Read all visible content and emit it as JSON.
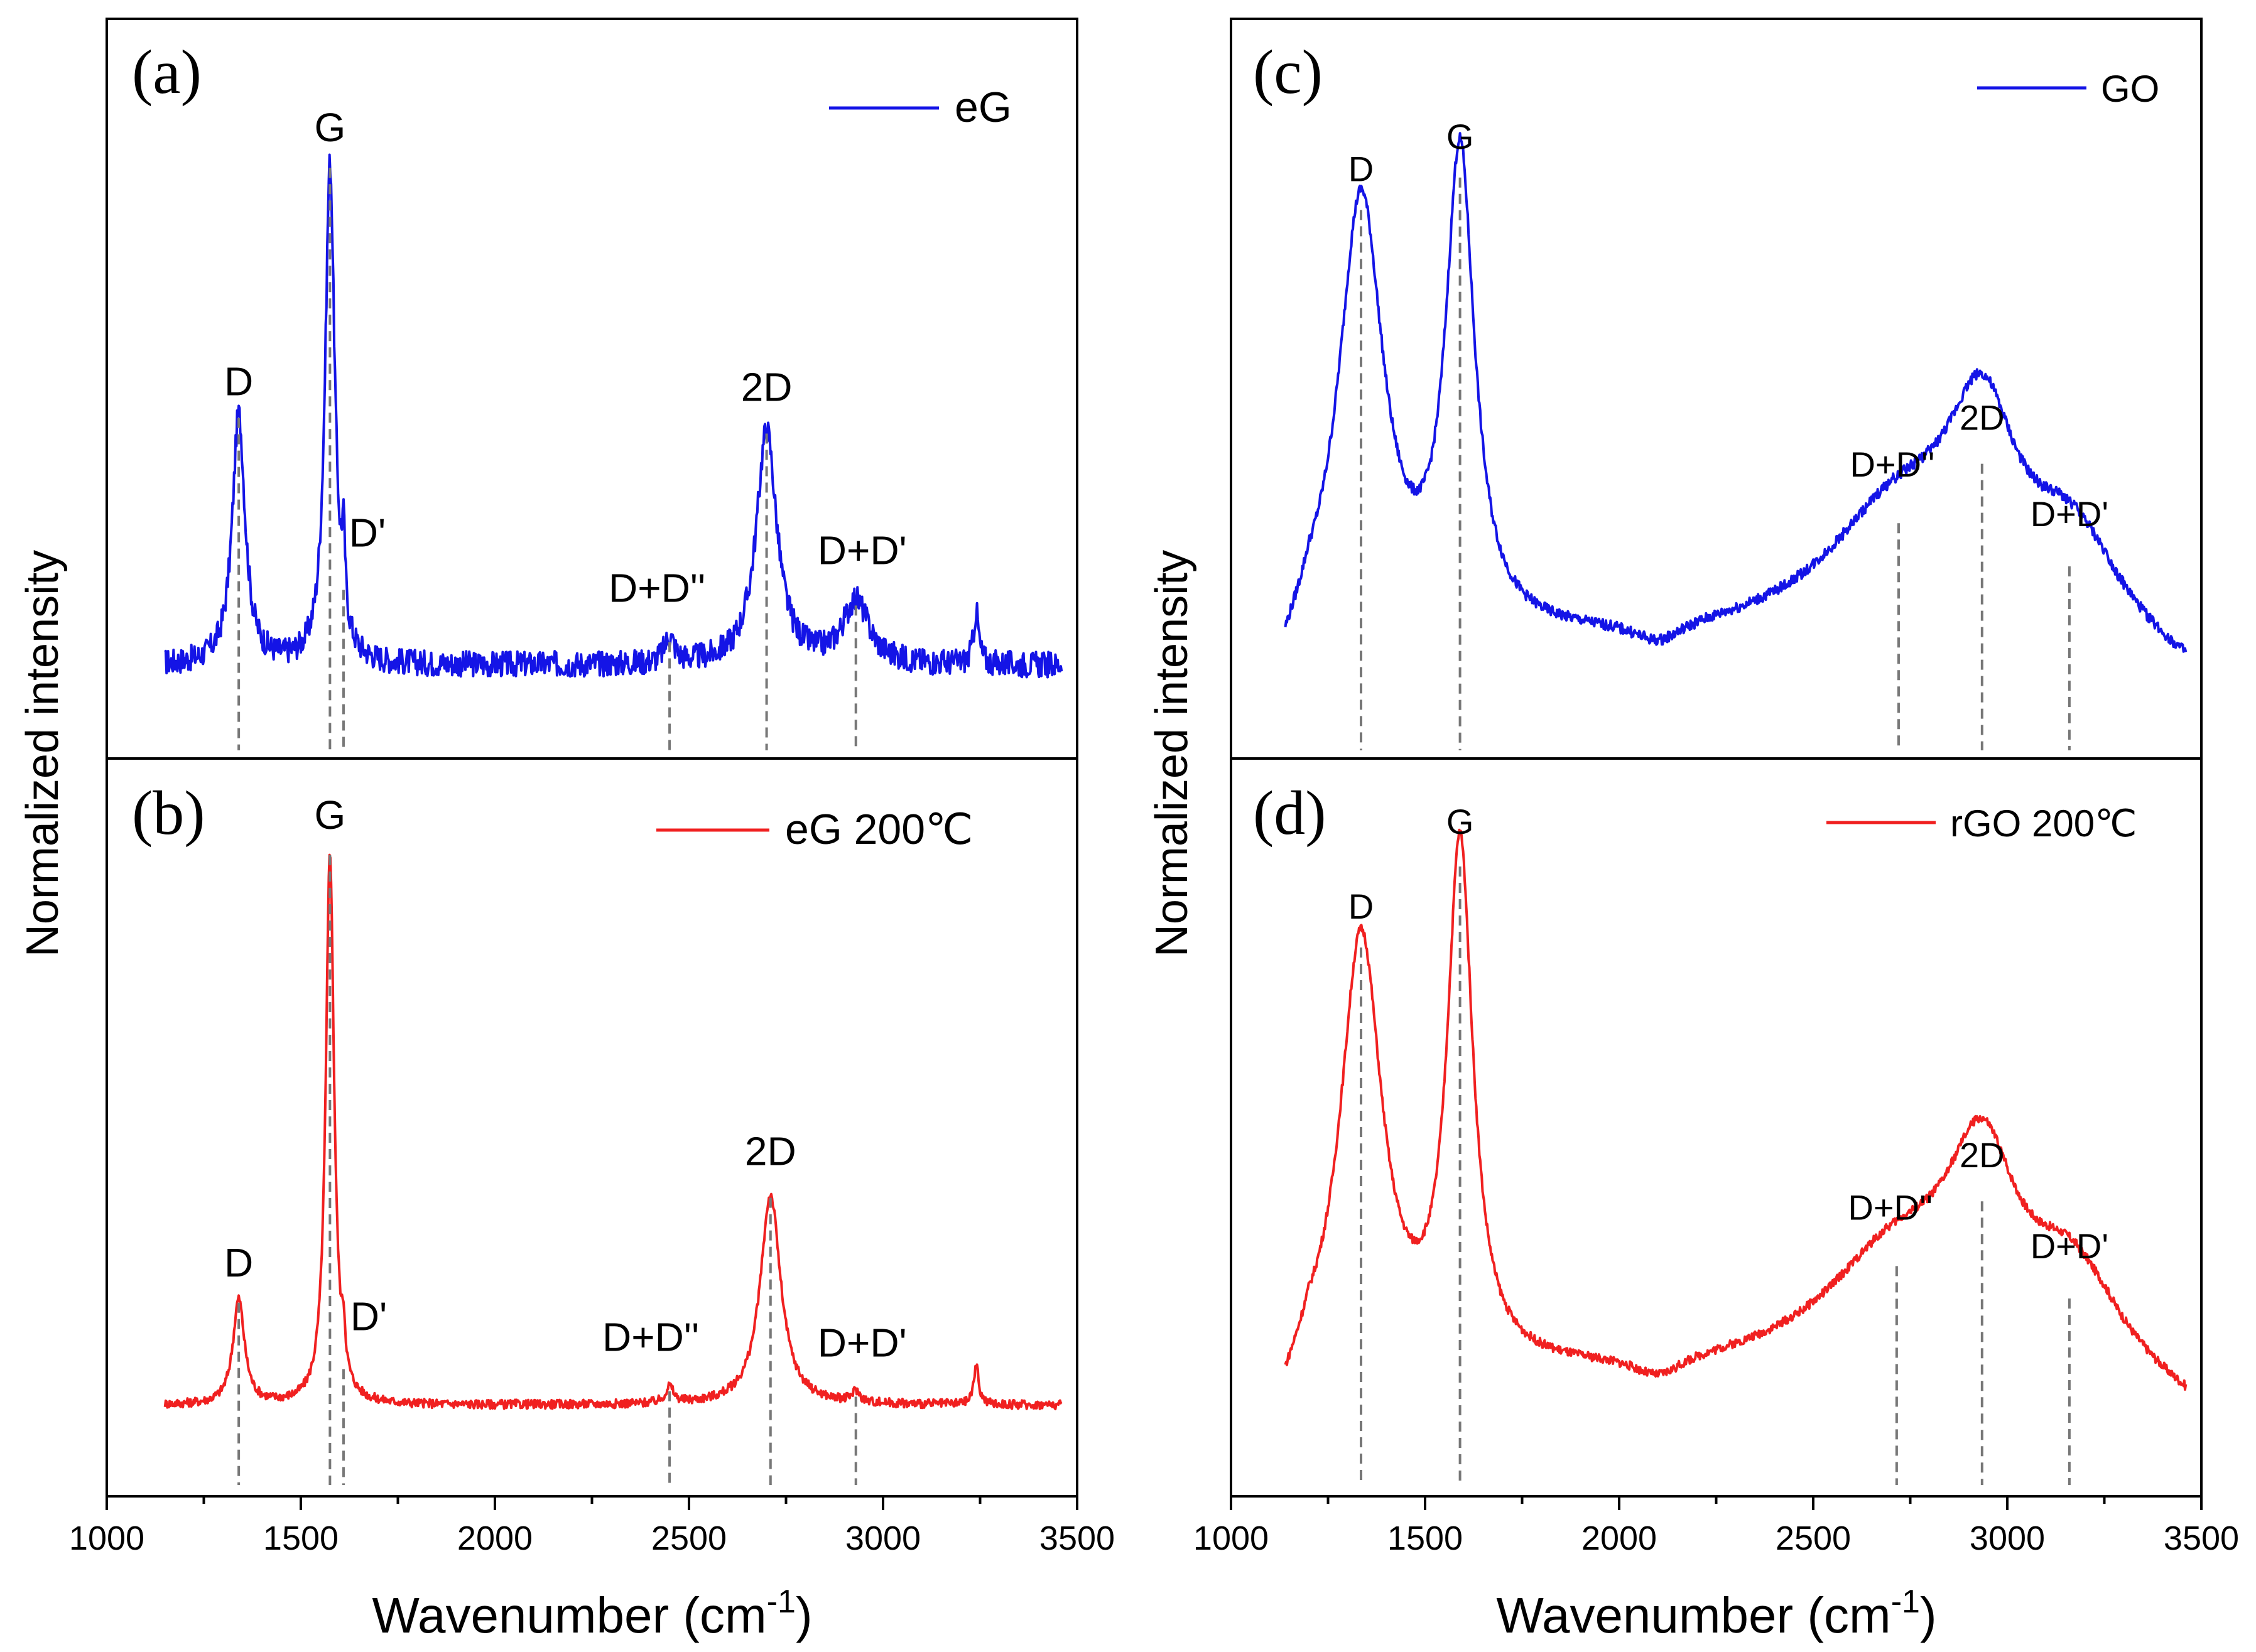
{
  "figure": {
    "x_axis_label": "Wavenumber (cm",
    "x_axis_sup": "-1",
    "x_axis_label_end": ")",
    "y_axis_label": "Normalized intensity"
  },
  "colors": {
    "blue": "#1414e6",
    "red": "#f02020",
    "guide": "#777777"
  },
  "chart_data": [
    {
      "type": "line",
      "panel": "a",
      "panel_label": "(a)",
      "series": [
        {
          "name": "eG",
          "color": "#1414e6"
        }
      ],
      "xlim": [
        1000,
        3500
      ],
      "peaks": [
        {
          "label": "D",
          "x": 1340,
          "y": 0.48
        },
        {
          "label": "G",
          "x": 1575,
          "y": 0.96
        },
        {
          "label": "D'",
          "x": 1610,
          "y": 0.15
        },
        {
          "label": "D+D''",
          "x": 2450,
          "y": 0.05
        },
        {
          "label": "2D",
          "x": 2700,
          "y": 0.45
        },
        {
          "label": "D+D'",
          "x": 2930,
          "y": 0.12
        }
      ],
      "extra_features": [
        {
          "x": 3240,
          "y": 0.1
        }
      ],
      "baseline": 0.0,
      "noise": 0.025
    },
    {
      "type": "line",
      "panel": "b",
      "panel_label": "(b)",
      "series": [
        {
          "name": "eG 200℃",
          "color": "#f02020"
        }
      ],
      "xlim": [
        1000,
        3500
      ],
      "xticks": [
        1000,
        1500,
        2000,
        2500,
        3000,
        3500
      ],
      "peaks": [
        {
          "label": "D",
          "x": 1340,
          "y": 0.19
        },
        {
          "label": "G",
          "x": 1575,
          "y": 1.0
        },
        {
          "label": "D'",
          "x": 1610,
          "y": 0.07
        },
        {
          "label": "D+D''",
          "x": 2450,
          "y": 0.03
        },
        {
          "label": "2D",
          "x": 2710,
          "y": 0.38
        },
        {
          "label": "D+D'",
          "x": 2930,
          "y": 0.02
        }
      ],
      "extra_features": [
        {
          "x": 3240,
          "y": 0.07
        }
      ],
      "baseline": 0.0,
      "noise": 0.008
    },
    {
      "type": "line",
      "panel": "c",
      "panel_label": "(c)",
      "series": [
        {
          "name": "GO",
          "color": "#1414e6"
        }
      ],
      "xlim": [
        1000,
        3500
      ],
      "peaks": [
        {
          "label": "D",
          "x": 1335,
          "y": 0.86
        },
        {
          "label": "G",
          "x": 1590,
          "y": 0.92
        },
        {
          "label": "D+D''",
          "x": 2720,
          "y": 0.28
        },
        {
          "label": "2D",
          "x": 2935,
          "y": 0.39
        },
        {
          "label": "D+D'",
          "x": 3160,
          "y": 0.2
        }
      ],
      "baseline": 0.05,
      "noise": 0.01
    },
    {
      "type": "line",
      "panel": "d",
      "panel_label": "(d)",
      "series": [
        {
          "name": "rGO 200℃",
          "color": "#f02020"
        }
      ],
      "xlim": [
        1000,
        3500
      ],
      "xticks": [
        1000,
        1500,
        2000,
        2500,
        3000,
        3500
      ],
      "peaks": [
        {
          "label": "D",
          "x": 1335,
          "y": 0.85
        },
        {
          "label": "G",
          "x": 1590,
          "y": 1.0
        },
        {
          "label": "D+D''",
          "x": 2715,
          "y": 0.26
        },
        {
          "label": "2D",
          "x": 2935,
          "y": 0.38
        },
        {
          "label": "D+D'",
          "x": 3160,
          "y": 0.2
        }
      ],
      "baseline": 0.05,
      "noise": 0.008
    }
  ]
}
